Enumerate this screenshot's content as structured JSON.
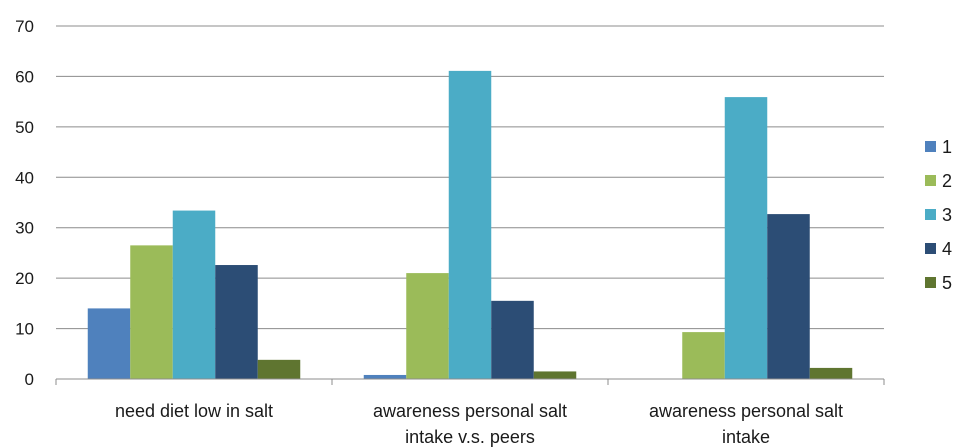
{
  "chart_data": {
    "type": "bar",
    "title": "",
    "xlabel": "",
    "ylabel": "",
    "ylim": [
      0,
      70
    ],
    "yticks": [
      0,
      10,
      20,
      30,
      40,
      50,
      60,
      70
    ],
    "grid": true,
    "legend_position": "right",
    "categories": [
      [
        "need diet low in salt"
      ],
      [
        "awareness personal salt",
        "intake v.s. peers"
      ],
      [
        "awareness personal salt",
        "intake"
      ]
    ],
    "series": [
      {
        "name": "1",
        "color": "#4F81BD",
        "values": [
          14,
          0.8,
          0
        ]
      },
      {
        "name": "2",
        "color": "#9BBB59",
        "values": [
          26.5,
          21,
          9.3
        ]
      },
      {
        "name": "3",
        "color": "#4BACC6",
        "values": [
          33.4,
          61.1,
          55.9
        ]
      },
      {
        "name": "4",
        "color": "#2C4D75",
        "values": [
          22.6,
          15.5,
          32.7
        ]
      },
      {
        "name": "5",
        "color": "#5F7530",
        "values": [
          3.8,
          1.5,
          2.2
        ]
      }
    ]
  }
}
